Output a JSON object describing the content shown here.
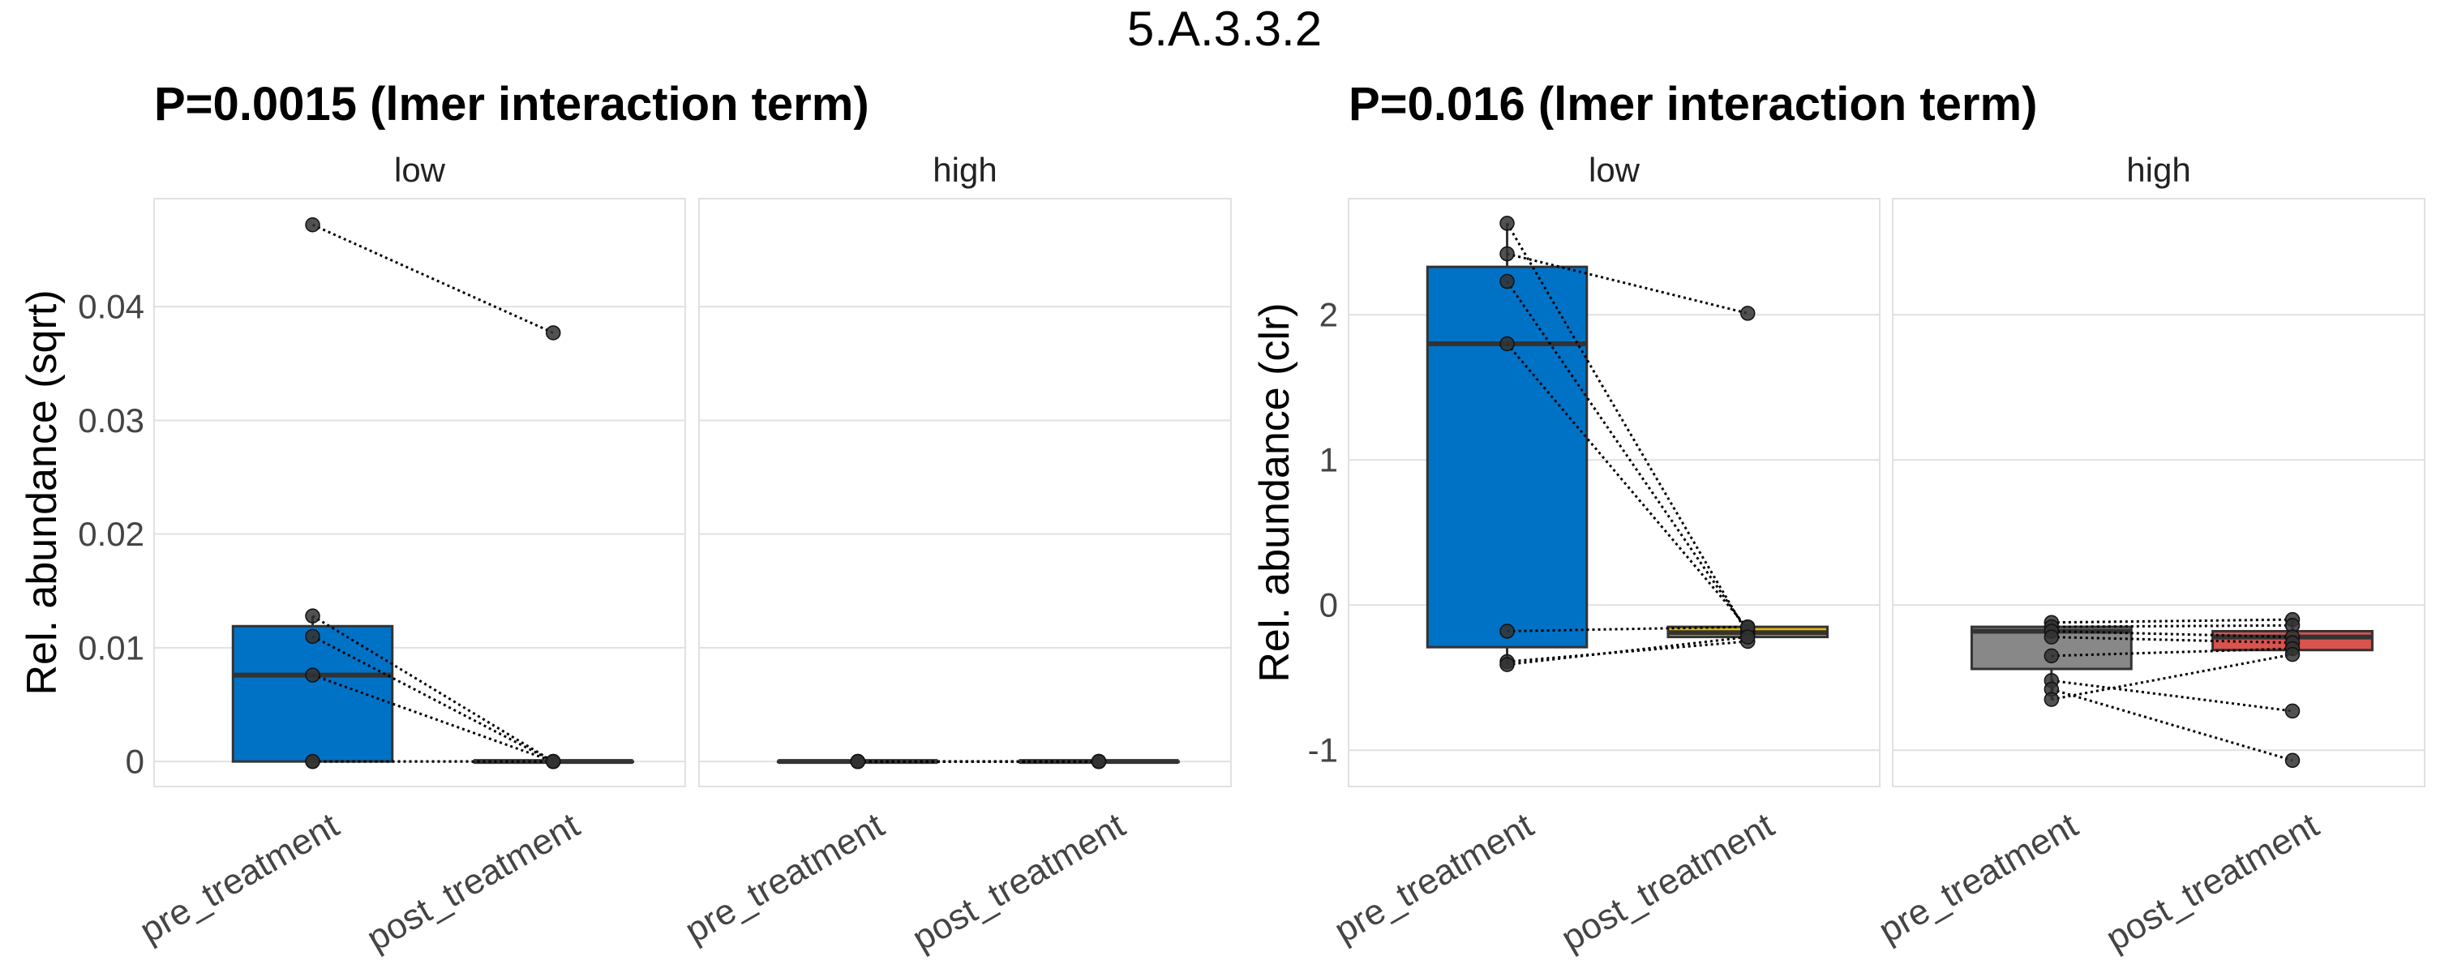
{
  "figure_title": "5.A.3.3.2",
  "colors": {
    "low_pre": "#0072C6",
    "low_post": "#E6B800",
    "high_pre": "#888888",
    "high_post": "#D9534F",
    "grid": "#E1E1E1",
    "panel_border": "#E1E1E1",
    "text": "#444444",
    "title": "#000000"
  },
  "chart_data": [
    {
      "type": "box",
      "title": "P=0.0015 (lmer interaction term)",
      "ylabel": "Rel. abundance (sqrt)",
      "ylim": [
        -0.0022,
        0.0495
      ],
      "yticks": [
        0,
        0.01,
        0.02,
        0.03,
        0.04
      ],
      "ytick_labels": [
        "0",
        "0.01",
        "0.02",
        "0.03",
        "0.04"
      ],
      "categories": [
        "pre_treatment",
        "post_treatment"
      ],
      "facets": [
        {
          "label": "low",
          "boxes": [
            {
              "category": "pre_treatment",
              "color_key": "low_pre",
              "q1": 0,
              "median": 0.0076,
              "q3": 0.0119,
              "whisker_low": 0,
              "whisker_high": 0.0128
            },
            {
              "category": "post_treatment",
              "color_key": "low_post",
              "q1": 0,
              "median": 0,
              "q3": 0,
              "whisker_low": 0,
              "whisker_high": 0
            }
          ],
          "pairs": [
            [
              0.0472,
              0.0377
            ],
            [
              0.0128,
              0
            ],
            [
              0.011,
              0
            ],
            [
              0.0076,
              0
            ],
            [
              0,
              0
            ],
            [
              0,
              0
            ]
          ]
        },
        {
          "label": "high",
          "boxes": [
            {
              "category": "pre_treatment",
              "color_key": "high_pre",
              "q1": 0,
              "median": 0,
              "q3": 0,
              "whisker_low": 0,
              "whisker_high": 0
            },
            {
              "category": "post_treatment",
              "color_key": "high_post",
              "q1": 0,
              "median": 0,
              "q3": 0,
              "whisker_low": 0,
              "whisker_high": 0
            }
          ],
          "pairs": [
            [
              0,
              0
            ],
            [
              0,
              0
            ],
            [
              0,
              0
            ],
            [
              0,
              0
            ],
            [
              0,
              0
            ],
            [
              0,
              0
            ],
            [
              0,
              0
            ]
          ]
        }
      ]
    },
    {
      "type": "box",
      "title": "P=0.016 (lmer interaction term)",
      "ylabel": "Rel. abundance (clr)",
      "ylim": [
        -1.25,
        2.8
      ],
      "yticks": [
        -1,
        0,
        1,
        2
      ],
      "ytick_labels": [
        "-1",
        "0",
        "1",
        "2"
      ],
      "categories": [
        "pre_treatment",
        "post_treatment"
      ],
      "facets": [
        {
          "label": "low",
          "boxes": [
            {
              "category": "pre_treatment",
              "color_key": "low_pre",
              "q1": -0.29,
              "median": 1.8,
              "q3": 2.33,
              "whisker_low": -0.41,
              "whisker_high": 2.63
            },
            {
              "category": "post_treatment",
              "color_key": "low_post",
              "q1": -0.22,
              "median": -0.19,
              "q3": -0.15,
              "whisker_low": -0.25,
              "whisker_high": -0.15
            }
          ],
          "pairs": [
            [
              2.63,
              -0.2
            ],
            [
              2.42,
              2.01
            ],
            [
              2.23,
              -0.18
            ],
            [
              1.8,
              -0.16
            ],
            [
              -0.18,
              -0.15
            ],
            [
              -0.39,
              -0.25
            ],
            [
              -0.41,
              -0.22
            ]
          ]
        },
        {
          "label": "high",
          "boxes": [
            {
              "category": "pre_treatment",
              "color_key": "high_pre",
              "q1": -0.44,
              "median": -0.18,
              "q3": -0.15,
              "whisker_low": -0.65,
              "whisker_high": -0.12
            },
            {
              "category": "post_treatment",
              "color_key": "high_post",
              "q1": -0.31,
              "median": -0.22,
              "q3": -0.18,
              "whisker_low": -0.34,
              "whisker_high": -0.1
            }
          ],
          "pairs": [
            [
              -0.12,
              -0.1
            ],
            [
              -0.15,
              -0.14
            ],
            [
              -0.18,
              -0.22
            ],
            [
              -0.22,
              -0.26
            ],
            [
              -0.35,
              -0.3
            ],
            [
              -0.52,
              -0.73
            ],
            [
              -0.58,
              -1.07
            ],
            [
              -0.65,
              -0.34
            ]
          ]
        }
      ]
    }
  ]
}
